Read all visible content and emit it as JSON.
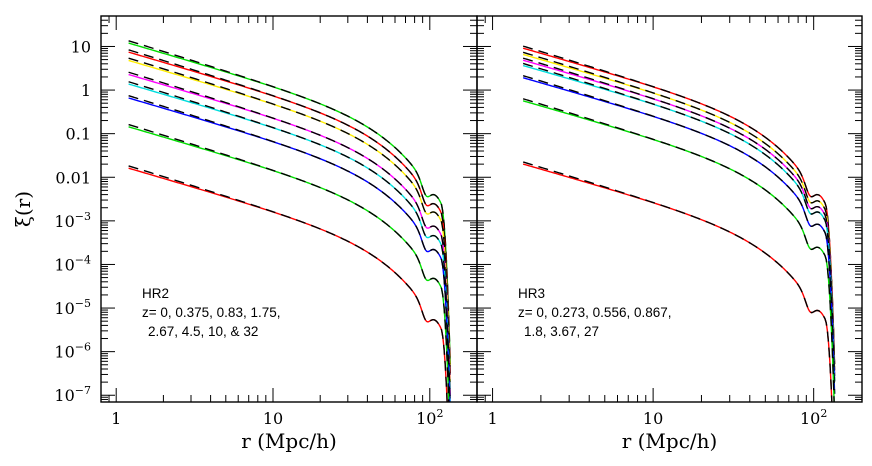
{
  "chart_data": [
    {
      "type": "line",
      "panel": "HR2",
      "ylabel": "ξ(r)",
      "xlabel": "r (Mpc/h)",
      "xscale": "log",
      "yscale": "log",
      "xlim": [
        0.8,
        200
      ],
      "ylim": [
        7e-08,
        50
      ],
      "x_ticks": [
        "1",
        "10",
        "10^2"
      ],
      "y_ticks": [
        "10",
        "1",
        "0.1",
        "0.01",
        "10^-3",
        "10^-4",
        "10^-5",
        "10^-6",
        "10^-7"
      ],
      "annotation": [
        "HR2",
        "z= 0, 0.375, 0.83, 1.75,",
        "2.67, 4.5, 10, & 32"
      ],
      "dashed_model": true,
      "series": [
        {
          "z": 0,
          "color": "#00dd00",
          "amplitude": 1.0
        },
        {
          "z": 0.375,
          "color": "#ff0000",
          "amplitude": 0.62
        },
        {
          "z": 0.83,
          "color": "#ffee00",
          "amplitude": 0.4
        },
        {
          "z": 1.75,
          "color": "#ff00ff",
          "amplitude": 0.19
        },
        {
          "z": 2.67,
          "color": "#00dddd",
          "amplitude": 0.115
        },
        {
          "z": 4.5,
          "color": "#0000ff",
          "amplitude": 0.055
        },
        {
          "z": 10,
          "color": "#00dd00",
          "amplitude": 0.012
        },
        {
          "z": 32,
          "color": "#ff0000",
          "amplitude": 0.00135
        }
      ]
    },
    {
      "type": "line",
      "panel": "HR3",
      "xlabel": "r (Mpc/h)",
      "xscale": "log",
      "yscale": "log",
      "xlim": [
        0.8,
        200
      ],
      "ylim": [
        7e-08,
        50
      ],
      "x_ticks": [
        "1",
        "10",
        "10^2"
      ],
      "annotation": [
        "HR3",
        "z= 0, 0.273, 0.556, 0.867,",
        "1.8, 3.67, 27"
      ],
      "dashed_model": true,
      "series": [
        {
          "z": 0,
          "color": "#ff0000",
          "amplitude": 1.0
        },
        {
          "z": 0.273,
          "color": "#ffee00",
          "amplitude": 0.72
        },
        {
          "z": 0.556,
          "color": "#ff00ff",
          "amplitude": 0.53
        },
        {
          "z": 0.867,
          "color": "#00dddd",
          "amplitude": 0.4
        },
        {
          "z": 1.8,
          "color": "#0000ff",
          "amplitude": 0.21
        },
        {
          "z": 3.67,
          "color": "#00dd00",
          "amplitude": 0.062
        },
        {
          "z": 27,
          "color": "#ff0000",
          "amplitude": 0.0022
        }
      ]
    }
  ]
}
